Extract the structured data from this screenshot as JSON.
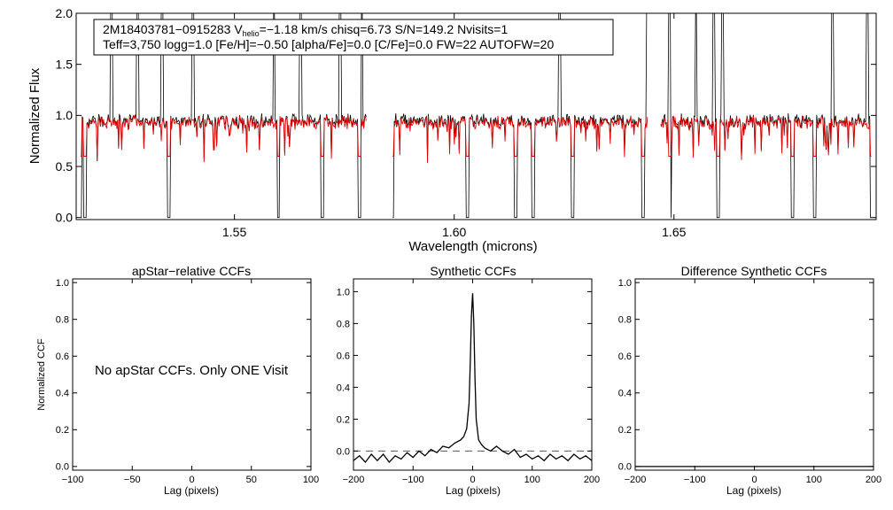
{
  "chart_data": [
    {
      "type": "line",
      "id": "spectrum",
      "xlabel": "Wavelength (microns)",
      "ylabel": "Normalized Flux",
      "xlim": [
        1.514,
        1.696
      ],
      "ylim": [
        -0.02,
        2.0
      ],
      "xticks": [
        "1.55",
        "1.60",
        "1.65"
      ],
      "xtick_values": [
        1.55,
        1.6,
        1.65
      ],
      "yticks": [
        "0.0",
        "0.5",
        "1.0",
        "1.5",
        "2.0"
      ],
      "ytick_values": [
        0.0,
        0.5,
        1.0,
        1.5,
        2.0
      ],
      "chips": [
        [
          1.515,
          1.58
        ],
        [
          1.586,
          1.644
        ],
        [
          1.647,
          1.695
        ]
      ],
      "continuum": 0.95,
      "emission_spikes": [
        1.522,
        1.528,
        1.5335,
        1.5405,
        1.559,
        1.565,
        1.574,
        1.579,
        1.624,
        1.644,
        1.649,
        1.655,
        1.659,
        1.661,
        1.686,
        1.694
      ],
      "absorption_lines": [
        1.515,
        1.516,
        1.535,
        1.56,
        1.57,
        1.5785,
        1.586,
        1.603,
        1.614,
        1.618,
        1.627,
        1.643,
        1.649,
        1.66,
        1.677,
        1.682,
        1.695
      ],
      "series": [
        {
          "name": "apStar spectrum",
          "color": "#000000"
        },
        {
          "name": "synthetic model",
          "color": "#e00000"
        }
      ],
      "annotation": {
        "star_id": "2M18403781−0915283",
        "vhelio_prefix": "V",
        "vhelio_sub": "helio",
        "vhelio_value": "=−1.18 km/s",
        "chisq": "chisq=6.73",
        "snr": "S/N=149.2",
        "nvisits": "Nvisits=1",
        "params_line": "Teff=3,750 logg=1.0 [Fe/H]=−0.50 [alpha/Fe]=0.0 [C/Fe]=0.0 FW=22 AUTOFW=20"
      }
    },
    {
      "type": "line",
      "id": "apstar-ccf",
      "title": "apStar−relative CCFs",
      "xlabel": "Lag (pixels)",
      "ylabel": "Normalized CCF",
      "xlim": [
        -100,
        100
      ],
      "ylim": [
        -0.02,
        1.02
      ],
      "xticks": [
        "−100",
        "−50",
        "0",
        "50",
        "100"
      ],
      "xtick_values": [
        -100,
        -50,
        0,
        50,
        100
      ],
      "yticks": [
        "0.0",
        "0.2",
        "0.4",
        "0.6",
        "0.8",
        "1.0"
      ],
      "ytick_values": [
        0.0,
        0.2,
        0.4,
        0.6,
        0.8,
        1.0
      ],
      "message": "No apStar CCFs.  Only ONE Visit",
      "series": []
    },
    {
      "type": "line",
      "id": "synthetic-ccf",
      "title": "Synthetic CCFs",
      "xlabel": "Lag (pixels)",
      "xlim": [
        -200,
        200
      ],
      "ylim": [
        -0.12,
        1.08
      ],
      "xticks": [
        "−200",
        "−100",
        "0",
        "100",
        "200"
      ],
      "xtick_values": [
        -200,
        -100,
        0,
        100,
        200
      ],
      "yticks": [
        "0.0",
        "0.2",
        "0.4",
        "0.6",
        "0.8",
        "1.0"
      ],
      "ytick_values": [
        0.0,
        0.2,
        0.4,
        0.6,
        0.8,
        1.0
      ],
      "zero_line": 0.0,
      "series": [
        {
          "name": "synthetic CCF",
          "x": [
            -200,
            -190,
            -180,
            -170,
            -160,
            -150,
            -140,
            -130,
            -120,
            -110,
            -100,
            -90,
            -80,
            -70,
            -60,
            -50,
            -40,
            -30,
            -20,
            -15,
            -10,
            -6,
            -4,
            -2,
            0,
            2,
            4,
            6,
            10,
            15,
            20,
            30,
            40,
            50,
            60,
            70,
            80,
            90,
            100,
            110,
            120,
            130,
            140,
            150,
            160,
            170,
            180,
            190,
            200
          ],
          "y": [
            -0.06,
            -0.03,
            -0.07,
            -0.02,
            -0.06,
            -0.02,
            -0.07,
            -0.03,
            -0.05,
            -0.01,
            -0.04,
            0.0,
            -0.03,
            0.01,
            -0.01,
            0.03,
            0.02,
            0.05,
            0.07,
            0.09,
            0.14,
            0.3,
            0.55,
            0.85,
            0.99,
            0.8,
            0.45,
            0.2,
            0.07,
            0.04,
            0.02,
            0.0,
            0.03,
            0.0,
            -0.02,
            0.01,
            -0.04,
            -0.02,
            -0.05,
            -0.03,
            -0.06,
            -0.02,
            -0.05,
            -0.03,
            -0.06,
            -0.02,
            -0.05,
            -0.03,
            -0.06
          ]
        }
      ]
    },
    {
      "type": "line",
      "id": "difference-ccf",
      "title": "Difference Synthetic CCFs",
      "xlabel": "Lag (pixels)",
      "xlim": [
        -200,
        200
      ],
      "ylim": [
        -0.02,
        1.02
      ],
      "xticks": [
        "−200",
        "−100",
        "0",
        "100",
        "200"
      ],
      "xtick_values": [
        -200,
        -100,
        0,
        100,
        200
      ],
      "yticks": [
        "0.0",
        "0.2",
        "0.4",
        "0.6",
        "0.8",
        "1.0"
      ],
      "ytick_values": [
        0.0,
        0.2,
        0.4,
        0.6,
        0.8,
        1.0
      ],
      "series": [
        {
          "name": "difference CCF",
          "x": [
            -200,
            200
          ],
          "y": [
            0.0,
            0.0
          ]
        }
      ]
    }
  ]
}
